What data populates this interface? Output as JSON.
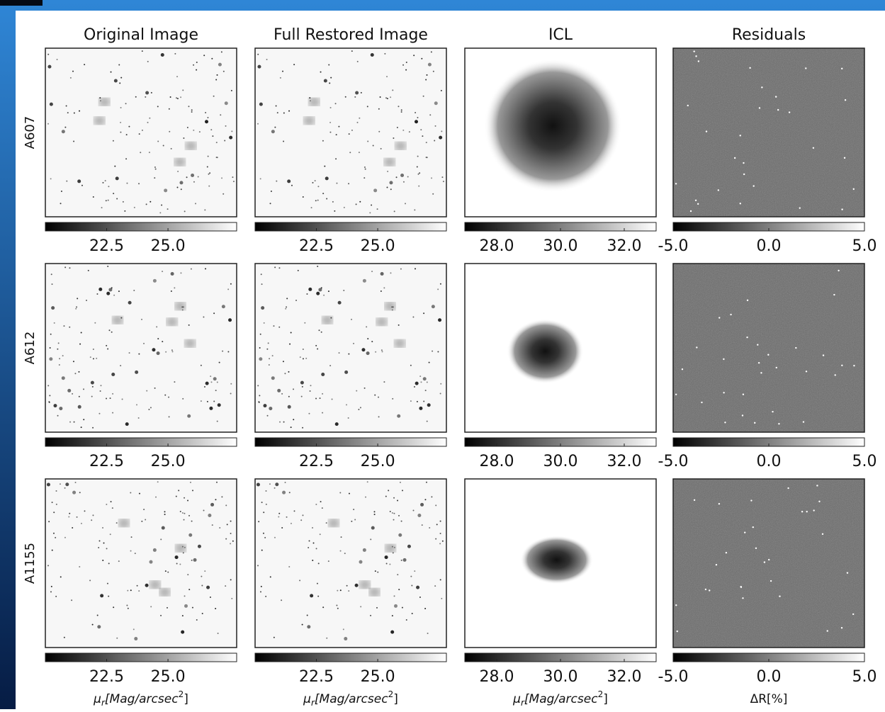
{
  "columns": [
    {
      "title": "Original Image",
      "colorbar": {
        "lim": [
          20,
          27.8
        ],
        "ticks": [
          22.5,
          {
            "value": 25,
            "label": "25.0"
          }
        ],
        "label": {
          "symbol": "μ",
          "subscript": "r",
          "unit": "[Mag/arcsec",
          "power": "2",
          "close": "]"
        }
      }
    },
    {
      "title": "Full Restored Image",
      "colorbar": {
        "lim": [
          20,
          27.8
        ],
        "ticks": [
          22.5,
          {
            "value": 25,
            "label": "25.0"
          }
        ],
        "label": {
          "symbol": "μ",
          "subscript": "r",
          "unit": "[Mag/arcsec",
          "power": "2",
          "close": "]"
        }
      }
    },
    {
      "title": "ICL",
      "colorbar": {
        "lim": [
          27,
          33
        ],
        "ticks": [
          {
            "value": 28,
            "label": "28.0"
          },
          {
            "value": 30,
            "label": "30.0"
          },
          {
            "value": 32,
            "label": "32.0"
          }
        ],
        "label": {
          "symbol": "μ",
          "subscript": "r",
          "unit": "[Mag/arcsec",
          "power": "2",
          "close": "]"
        }
      }
    },
    {
      "title": "Residuals",
      "colorbar": {
        "lim": [
          -5,
          5
        ],
        "ticks": [
          {
            "value": -5,
            "label": "-5.0"
          },
          {
            "value": 0,
            "label": "0.0"
          },
          {
            "value": 5,
            "label": "5.0"
          }
        ],
        "label": {
          "text": "ΔR[%]"
        }
      }
    }
  ],
  "rows": [
    "A607",
    "A612",
    "A1155"
  ]
}
